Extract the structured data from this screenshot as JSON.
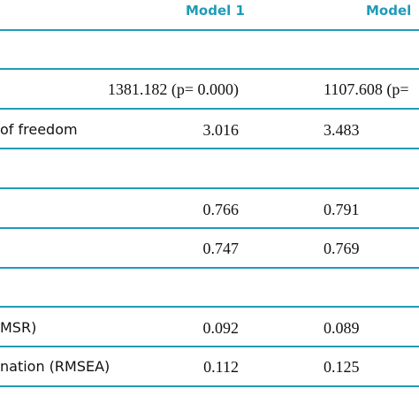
{
  "header": {
    "model1": "Model 1",
    "model2": "Model"
  },
  "rows": [
    {
      "label": "",
      "model1": "1381.182 (p= 0.000)",
      "model2": "1107.608 (p="
    },
    {
      "label": "of freedom",
      "model1": "3.016",
      "model2": "3.483"
    },
    {
      "label": "",
      "model1": "0.766",
      "model2": "0.791"
    },
    {
      "label": "",
      "model1": "0.747",
      "model2": "0.769"
    },
    {
      "label": "MSR)",
      "model1": "0.092",
      "model2": "0.089"
    },
    {
      "label": "nation (RMSEA)",
      "model1": "0.112",
      "model2": "0.125"
    }
  ],
  "colors": {
    "accent": "#1f9bb5",
    "text": "#111111"
  }
}
